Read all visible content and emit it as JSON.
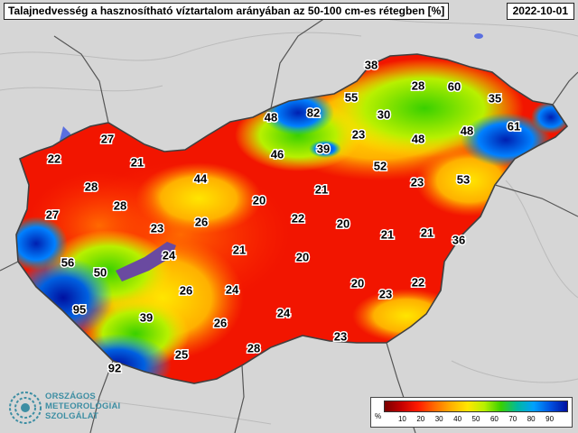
{
  "title": "Talajnedvesség a hasznosítható víztartalom arányában az 50-100 cm-es rétegben [%]",
  "date": "2022-10-01",
  "legend": {
    "unit": "%",
    "ticks": [
      "10",
      "20",
      "30",
      "40",
      "50",
      "60",
      "70",
      "80",
      "90"
    ],
    "colors": [
      "#7a0000",
      "#c40000",
      "#ff1a00",
      "#ff6a00",
      "#ffb000",
      "#ffe600",
      "#b8f000",
      "#39d000",
      "#00b8a0",
      "#00a0ff",
      "#0050e0",
      "#0010a0"
    ]
  },
  "logo": {
    "lines": [
      "ORSZÁGOS",
      "METEOROLÓGIAI",
      "SZOLGÁLAT"
    ]
  },
  "map_values": [
    {
      "v": "38"
    },
    {
      "v": "28"
    },
    {
      "v": "60"
    },
    {
      "v": "35"
    },
    {
      "v": "55"
    },
    {
      "v": "82"
    },
    {
      "v": "48"
    },
    {
      "v": "30"
    },
    {
      "v": "61"
    },
    {
      "v": "48"
    },
    {
      "v": "23"
    },
    {
      "v": "48"
    },
    {
      "v": "39"
    },
    {
      "v": "46"
    },
    {
      "v": "27"
    },
    {
      "v": "22"
    },
    {
      "v": "21"
    },
    {
      "v": "52"
    },
    {
      "v": "44"
    },
    {
      "v": "53"
    },
    {
      "v": "28"
    },
    {
      "v": "23"
    },
    {
      "v": "21"
    },
    {
      "v": "20"
    },
    {
      "v": "28"
    },
    {
      "v": "27"
    },
    {
      "v": "22"
    },
    {
      "v": "20"
    },
    {
      "v": "26"
    },
    {
      "v": "23"
    },
    {
      "v": "21"
    },
    {
      "v": "21"
    },
    {
      "v": "36"
    },
    {
      "v": "21"
    },
    {
      "v": "56"
    },
    {
      "v": "24"
    },
    {
      "v": "20"
    },
    {
      "v": "50"
    },
    {
      "v": "26"
    },
    {
      "v": "24"
    },
    {
      "v": "20"
    },
    {
      "v": "22"
    },
    {
      "v": "23"
    },
    {
      "v": "95"
    },
    {
      "v": "39"
    },
    {
      "v": "24"
    },
    {
      "v": "26"
    },
    {
      "v": "28"
    },
    {
      "v": "23"
    },
    {
      "v": "25"
    },
    {
      "v": "92"
    }
  ]
}
